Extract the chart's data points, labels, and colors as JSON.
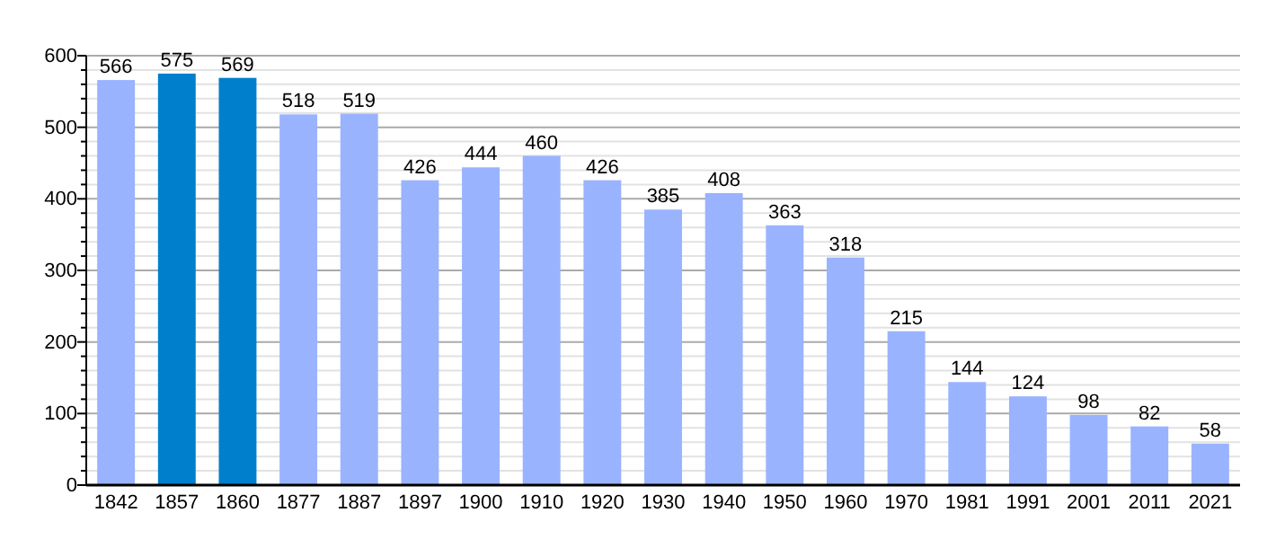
{
  "chart_data": {
    "type": "bar",
    "categories": [
      "1842",
      "1857",
      "1860",
      "1877",
      "1887",
      "1897",
      "1900",
      "1910",
      "1920",
      "1930",
      "1940",
      "1950",
      "1960",
      "1970",
      "1981",
      "1991",
      "2001",
      "2011",
      "2021"
    ],
    "values": [
      566,
      575,
      569,
      518,
      519,
      426,
      444,
      460,
      426,
      385,
      408,
      363,
      318,
      215,
      144,
      124,
      98,
      82,
      58
    ],
    "colors": [
      "#99b3ff",
      "#0080cc",
      "#0080cc",
      "#99b3ff",
      "#99b3ff",
      "#99b3ff",
      "#99b3ff",
      "#99b3ff",
      "#99b3ff",
      "#99b3ff",
      "#99b3ff",
      "#99b3ff",
      "#99b3ff",
      "#99b3ff",
      "#99b3ff",
      "#99b3ff",
      "#99b3ff",
      "#99b3ff",
      "#99b3ff"
    ],
    "ylim": [
      0,
      600
    ],
    "yticks": [
      0,
      {
        "value": 20,
        "label": null
      },
      {
        "value": 40,
        "label": null
      },
      {
        "value": 60,
        "label": null
      },
      {
        "value": 80,
        "label": null
      },
      100,
      {
        "value": 120,
        "label": null
      },
      {
        "value": 140,
        "label": null
      },
      {
        "value": 160,
        "label": null
      },
      {
        "value": 180,
        "label": null
      },
      200,
      {
        "value": 220,
        "label": null
      },
      {
        "value": 240,
        "label": null
      },
      {
        "value": 260,
        "label": null
      },
      {
        "value": 280,
        "label": null
      },
      300,
      {
        "value": 320,
        "label": null
      },
      {
        "value": 340,
        "label": null
      },
      {
        "value": 360,
        "label": null
      },
      {
        "value": 380,
        "label": null
      },
      400,
      {
        "value": 420,
        "label": null
      },
      {
        "value": 440,
        "label": null
      },
      {
        "value": 460,
        "label": null
      },
      {
        "value": 480,
        "label": null
      },
      500,
      {
        "value": 520,
        "label": null
      },
      {
        "value": 540,
        "label": null
      },
      {
        "value": 560,
        "label": null
      },
      {
        "value": 580,
        "label": null
      },
      600
    ],
    "grid": true,
    "data_labels": true
  }
}
